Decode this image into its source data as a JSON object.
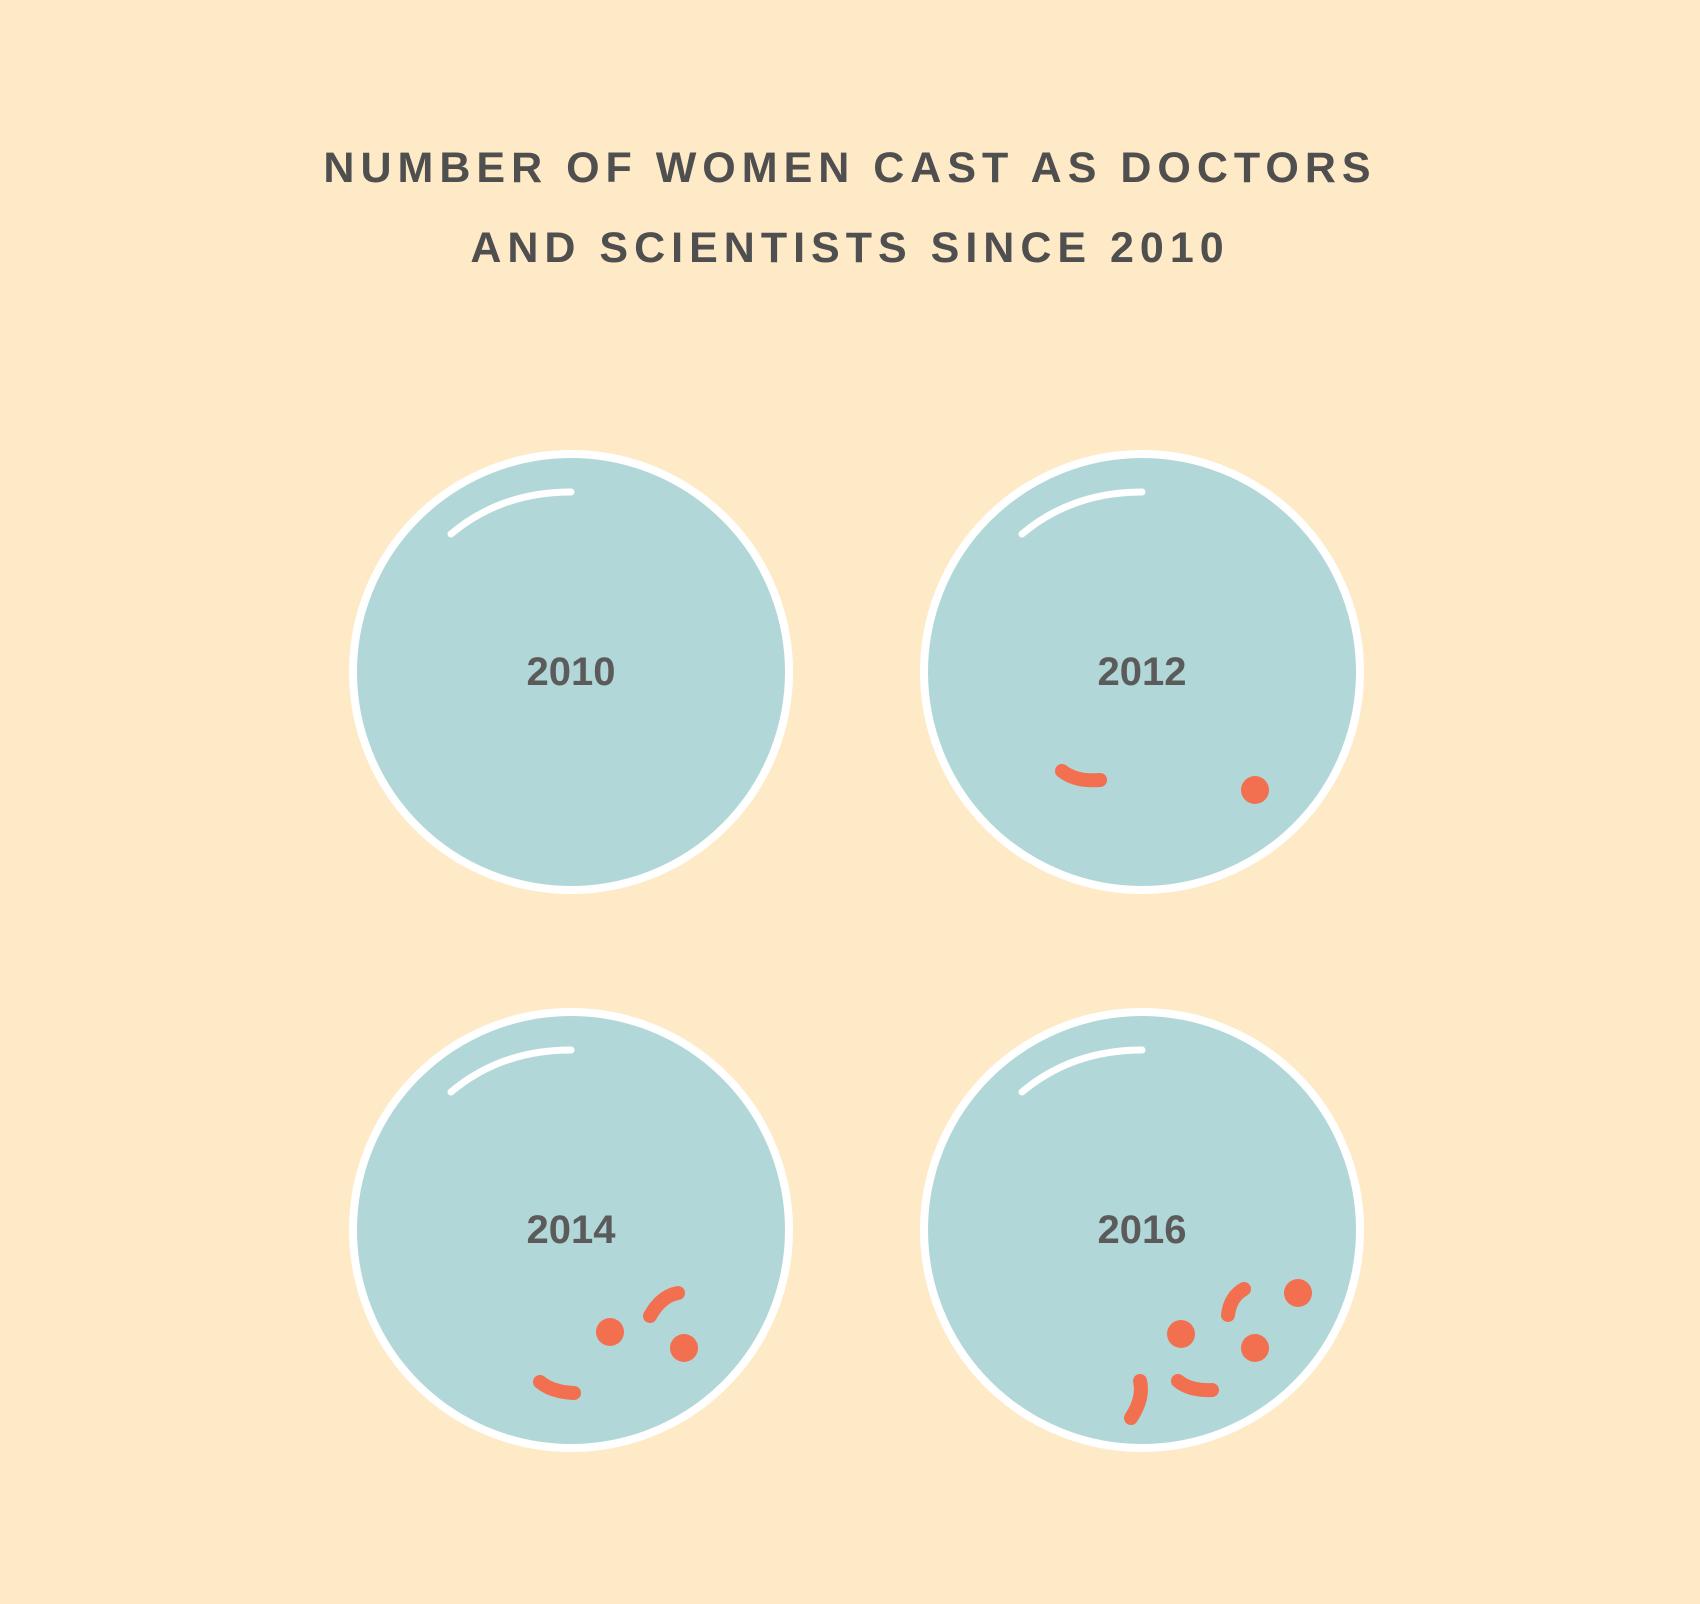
{
  "title": {
    "line1": "NUMBER OF WOMEN CAST AS DOCTORS",
    "line2": "AND SCIENTISTS SINCE 2010"
  },
  "colors": {
    "background": "#ffeac7",
    "dish": "#b2d7d8",
    "rim": "#ffffff",
    "marks": "#f26f50",
    "text": "#4f4f4f"
  },
  "chart_data": {
    "type": "pictogram",
    "title": "NUMBER OF WOMEN CAST AS DOCTORS AND SCIENTISTS SINCE 2010",
    "categories": [
      "2010",
      "2012",
      "2014",
      "2016"
    ],
    "values": [
      0,
      2,
      4,
      6
    ]
  }
}
